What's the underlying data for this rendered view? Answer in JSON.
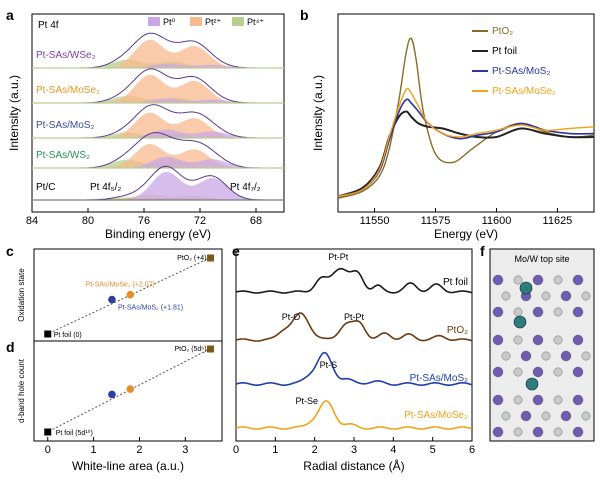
{
  "colors": {
    "pt0": "#c9a7e6",
    "pt2": "#f7b98d",
    "pt4": "#b8cf8f",
    "envelope": "#5a3b8b",
    "gray": "#7d7d7d",
    "sample_colors": [
      "#7b3fa6",
      "#e69522",
      "#3a4aa0",
      "#2e8b57",
      "#000000"
    ],
    "pto2": "#8b6b28",
    "ptfoil": "#222222",
    "mos2": "#2b36a3",
    "mose2": "#f2a218",
    "exafs": [
      "#1a1a1a",
      "#6b3a10",
      "#1f3ea8",
      "#f0a21a"
    ]
  },
  "panels": {
    "a": {
      "letter": "a",
      "title": "Pt 4f",
      "legend": [
        "Pt⁰",
        "Pt²⁺",
        "Pt⁴⁺"
      ],
      "peak_labels": [
        "Pt 4f₅/₂",
        "Pt 4f₇/₂"
      ]
    },
    "b": {
      "letter": "b"
    },
    "c": {
      "letter": "c"
    },
    "d": {
      "letter": "d"
    },
    "e": {
      "letter": "e"
    },
    "f": {
      "letter": "f",
      "title": "Mo/W top site"
    }
  },
  "chart_data": [
    {
      "id": "a",
      "type": "line",
      "xlabel": "Binding energy (eV)",
      "ylabel": "Intensity (a.u.)",
      "xlim": [
        84,
        66
      ],
      "x_ticks": [
        84,
        80,
        76,
        72,
        68
      ],
      "series": [
        {
          "name": "Pt-SAs/WSe₂",
          "components": {
            "pt0": 0.15,
            "pt2": 1.0,
            "pt4": 0.3
          }
        },
        {
          "name": "Pt-SAs/MoSe₂",
          "components": {
            "pt0": 0.15,
            "pt2": 1.0,
            "pt4": 0.25
          }
        },
        {
          "name": "Pt-SAs/MoS₂",
          "components": {
            "pt0": 0.3,
            "pt2": 0.9,
            "pt4": 0.2
          }
        },
        {
          "name": "Pt-SAs/WS₂",
          "components": {
            "pt0": 0.4,
            "pt2": 0.85,
            "pt4": 0.3
          }
        },
        {
          "name": "Pt/C",
          "components": {
            "pt0": 1.0,
            "pt2": 0.2,
            "pt4": 0.1
          }
        }
      ]
    },
    {
      "id": "b",
      "type": "line",
      "xlabel": "Energy (eV)",
      "ylabel": "Intensity (a.u.)",
      "xlim": [
        11535,
        11640
      ],
      "x_ticks": [
        11550,
        11575,
        11600,
        11625
      ],
      "series": [
        {
          "name": "PtO₂",
          "x": [
            11535,
            11545,
            11552,
            11556,
            11560,
            11563,
            11565,
            11567,
            11570,
            11575,
            11582,
            11590,
            11600,
            11610,
            11620,
            11630,
            11640
          ],
          "y": [
            0.04,
            0.08,
            0.17,
            0.33,
            0.62,
            0.9,
            0.98,
            0.86,
            0.55,
            0.3,
            0.25,
            0.33,
            0.43,
            0.48,
            0.43,
            0.4,
            0.41
          ]
        },
        {
          "name": "Pt foil",
          "x": [
            11535,
            11545,
            11552,
            11556,
            11560,
            11563,
            11565,
            11568,
            11572,
            11578,
            11585,
            11592,
            11600,
            11610,
            11620,
            11630,
            11640
          ],
          "y": [
            0.05,
            0.1,
            0.22,
            0.4,
            0.52,
            0.55,
            0.52,
            0.48,
            0.46,
            0.45,
            0.42,
            0.4,
            0.4,
            0.45,
            0.42,
            0.4,
            0.4
          ]
        },
        {
          "name": "Pt-SAs/MoS₂",
          "x": [
            11535,
            11545,
            11552,
            11556,
            11560,
            11563,
            11565,
            11568,
            11572,
            11578,
            11585,
            11592,
            11600,
            11610,
            11620,
            11630,
            11640
          ],
          "y": [
            0.05,
            0.09,
            0.2,
            0.38,
            0.55,
            0.62,
            0.6,
            0.55,
            0.48,
            0.42,
            0.39,
            0.41,
            0.43,
            0.48,
            0.44,
            0.42,
            0.42
          ]
        },
        {
          "name": "Pt-SAs/MoSe₂",
          "x": [
            11535,
            11545,
            11552,
            11556,
            11560,
            11563,
            11565,
            11568,
            11572,
            11578,
            11585,
            11592,
            11600,
            11610,
            11620,
            11630,
            11640
          ],
          "y": [
            0.05,
            0.09,
            0.21,
            0.4,
            0.58,
            0.68,
            0.66,
            0.58,
            0.48,
            0.42,
            0.4,
            0.42,
            0.44,
            0.47,
            0.44,
            0.45,
            0.46
          ]
        }
      ]
    },
    {
      "id": "c",
      "type": "scatter",
      "ylabel": "Oxidation state",
      "xlim": [
        -0.3,
        3.8
      ],
      "points": [
        {
          "label": "Pt foil (0)",
          "x": 0,
          "y": 0
        },
        {
          "label": "Pt-SAs/MoS₂ (+1.81)",
          "x": 1.4,
          "y": 1.81
        },
        {
          "label": "Pt-SAs/MoSe₂ (+2.07)",
          "x": 1.8,
          "y": 2.07
        },
        {
          "label": "PtO₂ (+4)",
          "x": 3.55,
          "y": 4
        }
      ]
    },
    {
      "id": "d",
      "type": "scatter",
      "xlabel": "White-line area (a.u.)",
      "ylabel": "d-band hole count",
      "xlim": [
        -0.3,
        3.8
      ],
      "x_ticks": [
        0,
        1,
        2,
        3
      ],
      "points": [
        {
          "label": "Pt foil (5d¹⁰)",
          "x": 0,
          "y": 0
        },
        {
          "label": "",
          "x": 1.4,
          "y": 1.81
        },
        {
          "label": "",
          "x": 1.8,
          "y": 2.07
        },
        {
          "label": "PtO₂ (5d⁶)",
          "x": 3.55,
          "y": 4
        }
      ]
    },
    {
      "id": "e",
      "type": "line",
      "xlabel": "Radial distance (Å)",
      "xlim": [
        0,
        6
      ],
      "x_ticks": [
        0,
        1,
        2,
        3,
        4,
        5,
        6
      ],
      "series": [
        {
          "name": "Pt foil",
          "peak_labels": [
            "Pt-Pt"
          ]
        },
        {
          "name": "PtO₂",
          "peak_labels": [
            "Pt-O",
            "Pt-Pt"
          ]
        },
        {
          "name": "Pt-SAs/MoS₂",
          "peak_labels": [
            "Pt-S"
          ]
        },
        {
          "name": "Pt-SAs/MoSe₂",
          "peak_labels": [
            "Pt-Se"
          ]
        }
      ]
    }
  ]
}
